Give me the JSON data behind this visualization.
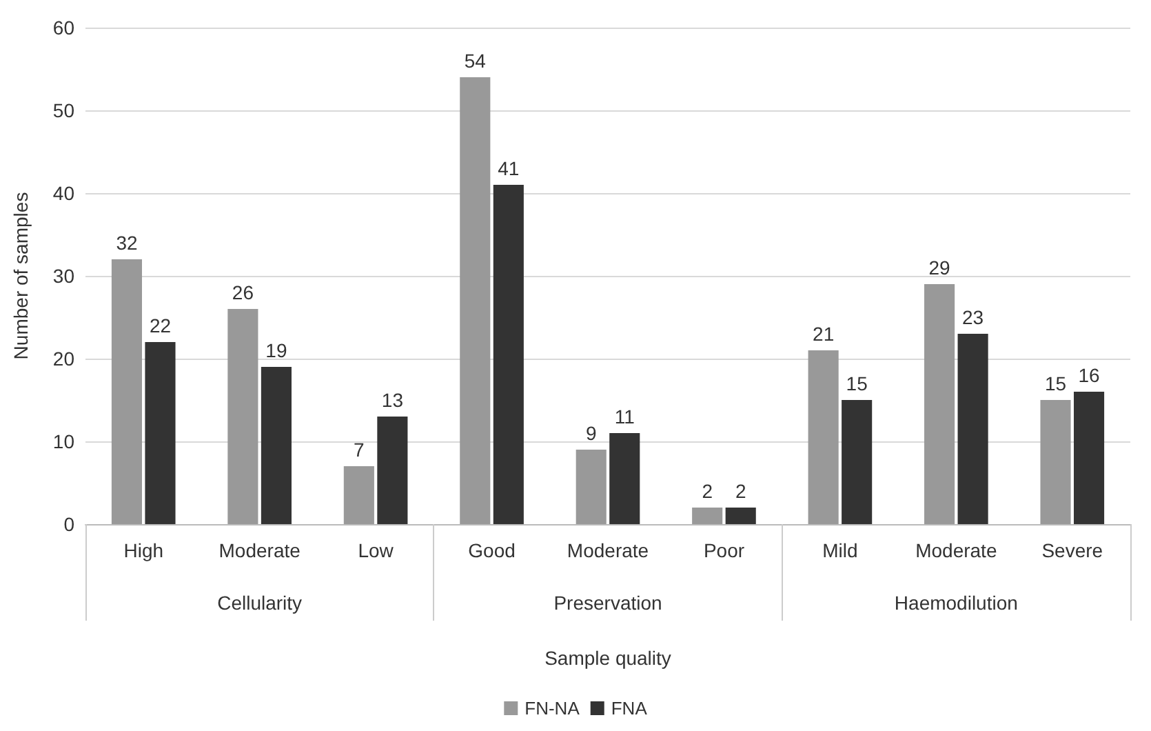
{
  "chart_data": {
    "type": "bar",
    "xlabel": "Sample quality",
    "ylabel": "Number of samples",
    "categories": [
      "High",
      "Moderate",
      "Low",
      "Good",
      "Moderate",
      "Poor",
      "Mild",
      "Moderate",
      "Severe"
    ],
    "annotations": [
      "Cellularity",
      "Preservation",
      "Haemodilution"
    ],
    "series": [
      {
        "name": "FN-NA",
        "color": "#999999",
        "values": [
          32,
          26,
          7,
          54,
          9,
          2,
          21,
          29,
          15
        ]
      },
      {
        "name": "FNA",
        "color": "#333333",
        "values": [
          22,
          19,
          13,
          41,
          11,
          2,
          15,
          23,
          16
        ]
      }
    ],
    "ylim": [
      0,
      60
    ],
    "yticks": [
      0,
      10,
      20,
      30,
      40,
      50,
      60
    ],
    "grid": "y",
    "legend": "bottom",
    "data_labels": true
  }
}
